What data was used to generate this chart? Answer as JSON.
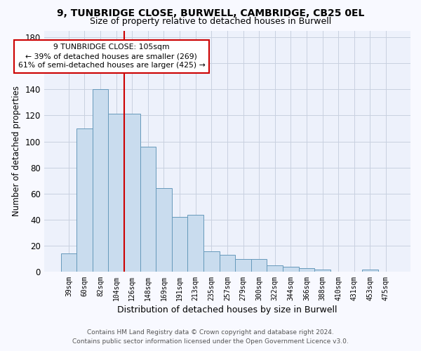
{
  "title_line1": "9, TUNBRIDGE CLOSE, BURWELL, CAMBRIDGE, CB25 0EL",
  "title_line2": "Size of property relative to detached houses in Burwell",
  "xlabel": "Distribution of detached houses by size in Burwell",
  "ylabel": "Number of detached properties",
  "categories": [
    "39sqm",
    "60sqm",
    "82sqm",
    "104sqm",
    "126sqm",
    "148sqm",
    "169sqm",
    "191sqm",
    "213sqm",
    "235sqm",
    "257sqm",
    "279sqm",
    "300sqm",
    "322sqm",
    "344sqm",
    "366sqm",
    "388sqm",
    "410sqm",
    "431sqm",
    "453sqm",
    "475sqm"
  ],
  "values": [
    14,
    110,
    140,
    121,
    121,
    96,
    64,
    42,
    44,
    16,
    13,
    10,
    10,
    5,
    4,
    3,
    2,
    0,
    0,
    2,
    0
  ],
  "bar_color": "#c9dcee",
  "bar_edge_color": "#6699bb",
  "grid_color": "#c8d0e0",
  "vline_x": 3.5,
  "vline_color": "#cc0000",
  "annotation_text": "9 TUNBRIDGE CLOSE: 105sqm\n← 39% of detached houses are smaller (269)\n61% of semi-detached houses are larger (425) →",
  "ylim_max": 185,
  "background_color": "#f8f9ff",
  "plot_bg_color": "#edf1fb",
  "footer_line1": "Contains HM Land Registry data © Crown copyright and database right 2024.",
  "footer_line2": "Contains public sector information licensed under the Open Government Licence v3.0."
}
